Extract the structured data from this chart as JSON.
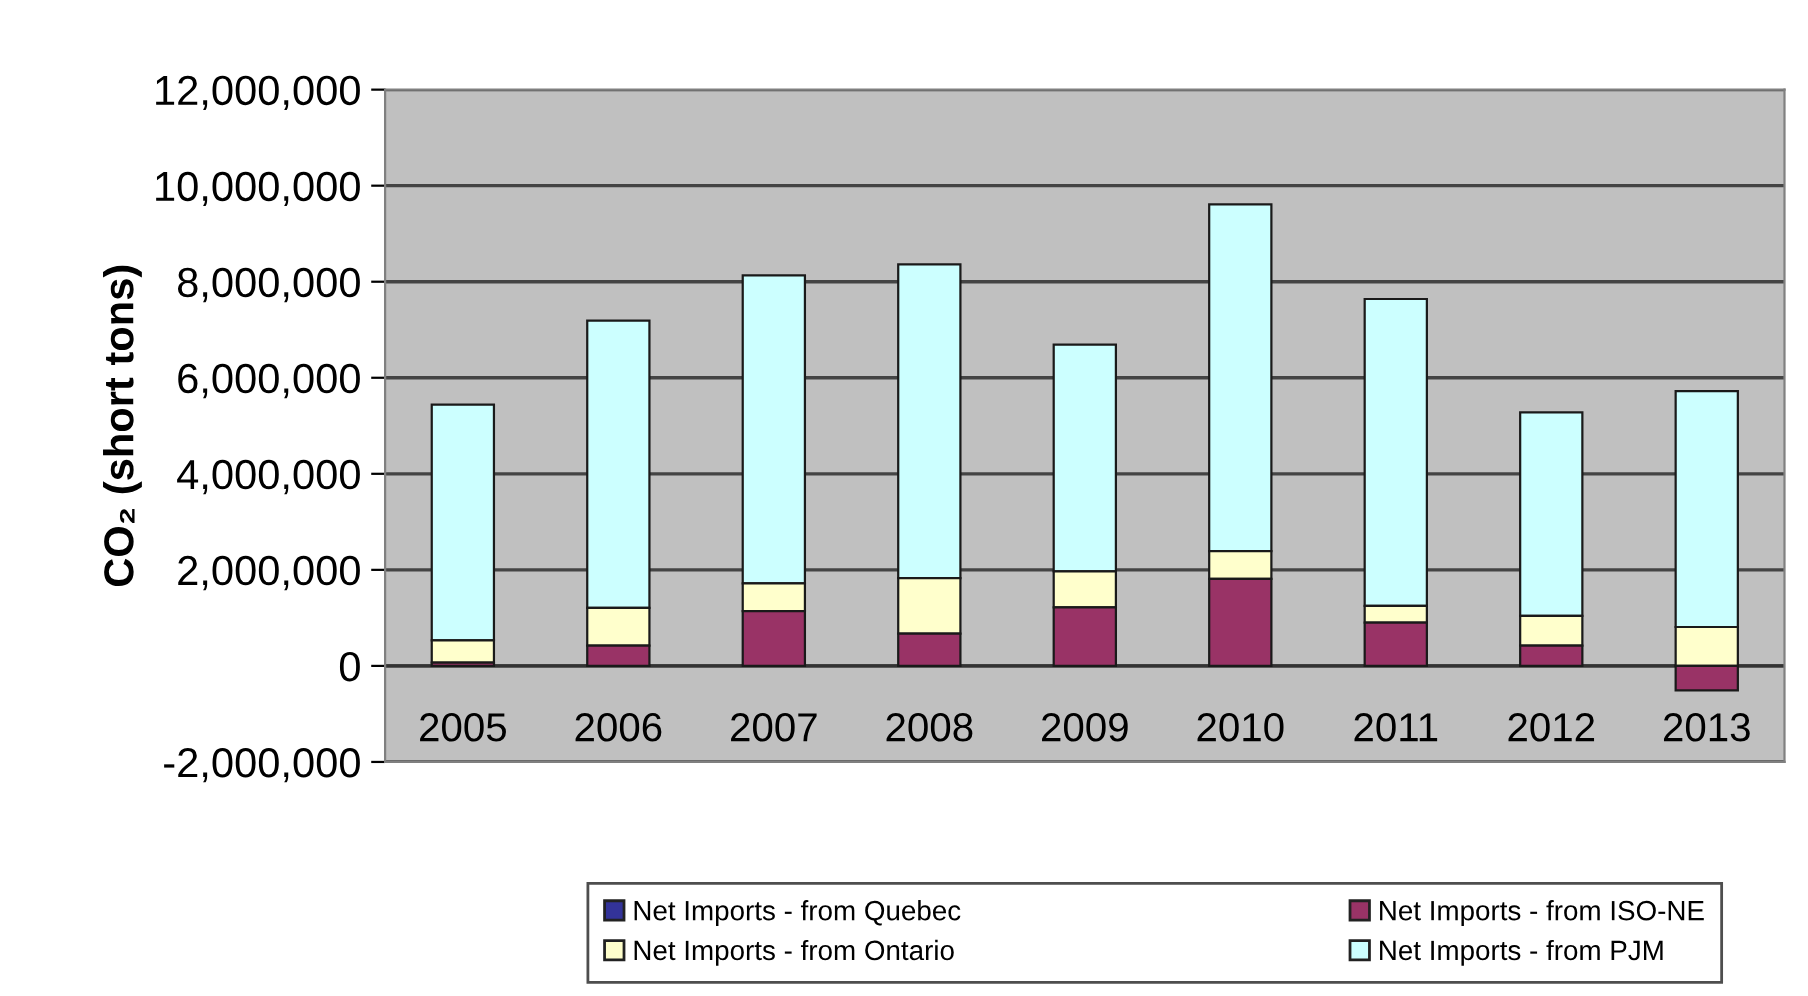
{
  "chart_data": {
    "type": "bar",
    "stacked": true,
    "ylabel": "CO₂ (short tons)",
    "categories": [
      "2005",
      "2006",
      "2007",
      "2008",
      "2009",
      "2010",
      "2011",
      "2012",
      "2013"
    ],
    "series": [
      {
        "name": "Net Imports - from Quebec",
        "color": "#333399",
        "values": [
          0,
          0,
          0,
          0,
          0,
          0,
          0,
          0,
          0
        ]
      },
      {
        "name": "Net Imports - from ISO-NE",
        "color": "#993366",
        "values": [
          70000,
          420000,
          1140000,
          670000,
          1220000,
          1810000,
          900000,
          420000,
          -510000
        ]
      },
      {
        "name": "Net Imports - from Ontario",
        "color": "#ffffcc",
        "values": [
          460000,
          790000,
          580000,
          1160000,
          750000,
          580000,
          350000,
          620000,
          810000
        ]
      },
      {
        "name": "Net Imports - from PJM",
        "color": "#ccffff",
        "values": [
          4910000,
          5980000,
          6410000,
          6530000,
          4720000,
          7220000,
          6390000,
          4240000,
          4910000
        ]
      }
    ],
    "ylim": [
      -2000000,
      12000000
    ],
    "yticks": [
      {
        "value": -2000000,
        "label": "-2,000,000"
      },
      {
        "value": 0,
        "label": "0"
      },
      {
        "value": 2000000,
        "label": "2,000,000"
      },
      {
        "value": 4000000,
        "label": "4,000,000"
      },
      {
        "value": 6000000,
        "label": "6,000,000"
      },
      {
        "value": 8000000,
        "label": "8,000,000"
      },
      {
        "value": 10000000,
        "label": "10,000,000"
      },
      {
        "value": 12000000,
        "label": "12,000,000"
      }
    ],
    "grid": "y",
    "legend": "bottom"
  }
}
